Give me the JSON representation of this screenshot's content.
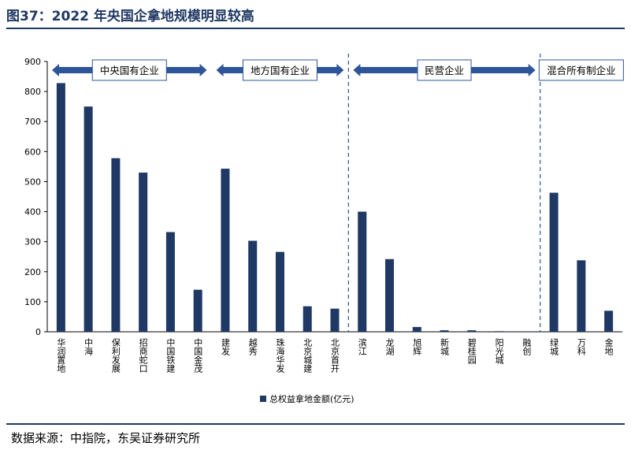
{
  "header": {
    "title": "图37：2022 年央国企拿地规模明显较高"
  },
  "footer": {
    "source": "数据来源：中指院，东吴证券研究所"
  },
  "colors": {
    "bar": "#1f3864",
    "accent": "#2e5597"
  },
  "chart_data": {
    "type": "bar",
    "title": "",
    "xlabel": "",
    "ylabel": "",
    "ylim": [
      0,
      900
    ],
    "yticks": [
      0,
      100,
      200,
      300,
      400,
      500,
      600,
      700,
      800,
      900
    ],
    "grid": false,
    "legend_position": "bottom",
    "categories": [
      "华润置地",
      "中海",
      "保利发展",
      "招商蛇口",
      "中国铁建",
      "中国金茂",
      "建发",
      "越秀",
      "珠海华发",
      "北京城建",
      "北京首开",
      "滨江",
      "龙湖",
      "旭辉",
      "新城",
      "碧桂园",
      "阳光城",
      "融创",
      "绿城",
      "万科",
      "金地"
    ],
    "series": [
      {
        "name": "总权益拿地金额(亿元)",
        "values": [
          828,
          750,
          578,
          530,
          332,
          140,
          543,
          303,
          266,
          85,
          77,
          400,
          242,
          16,
          5,
          5,
          2,
          0,
          463,
          238,
          70
        ]
      }
    ],
    "groups": [
      {
        "label": "中央国有企业",
        "start": 0,
        "end": 5
      },
      {
        "label": "地方国有企业",
        "start": 6,
        "end": 10
      },
      {
        "label": "民营企业",
        "start": 11,
        "end": 17
      },
      {
        "label": "混合所有制企业",
        "start": 18,
        "end": 20
      }
    ],
    "separators_after": [
      10,
      17
    ]
  }
}
